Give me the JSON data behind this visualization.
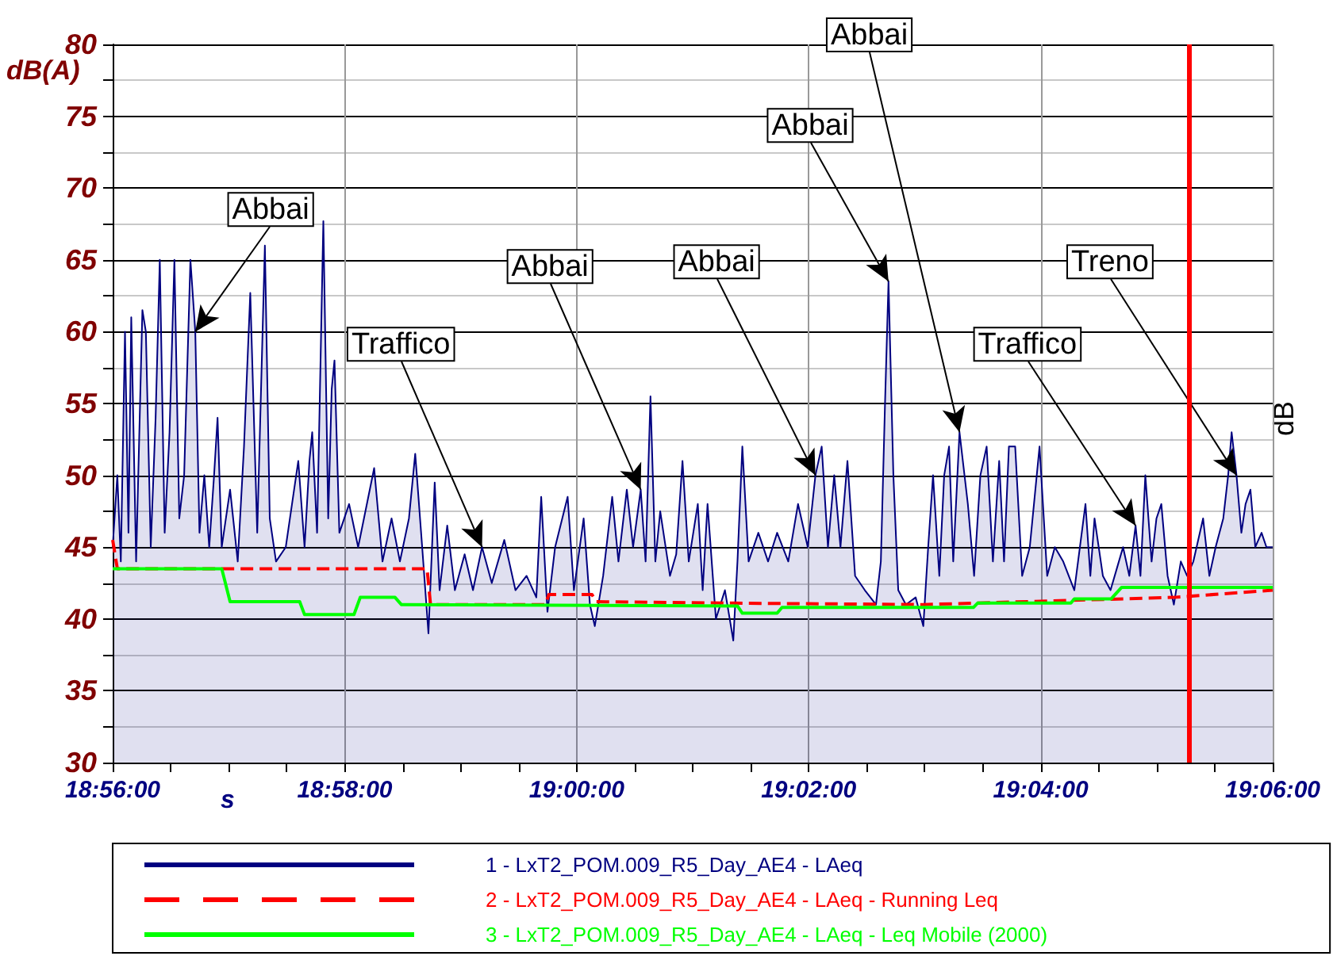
{
  "chart_data": {
    "type": "line",
    "xlabel": "s",
    "ylabel": "dB(A)",
    "xlim": [
      18.93333,
      19.1
    ],
    "ylim": [
      30,
      80
    ],
    "xticks": [
      {
        "value": 18.93333,
        "label": "18:56:00"
      },
      {
        "value": 18.94167,
        "label": null
      },
      {
        "value": 18.95,
        "label": null
      },
      {
        "value": 18.95833,
        "label": null
      },
      {
        "value": 18.96667,
        "label": "18:58:00"
      },
      {
        "value": 18.975,
        "label": null
      },
      {
        "value": 18.98333,
        "label": null
      },
      {
        "value": 18.99167,
        "label": null
      },
      {
        "value": 19,
        "label": "19:00:00"
      },
      {
        "value": 19.00833,
        "label": null
      },
      {
        "value": 19.01667,
        "label": null
      },
      {
        "value": 19.025,
        "label": null
      },
      {
        "value": 19.03333,
        "label": "19:02:00"
      },
      {
        "value": 19.04167,
        "label": null
      },
      {
        "value": 19.05,
        "label": null
      },
      {
        "value": 19.05833,
        "label": null
      },
      {
        "value": 19.06667,
        "label": "19:04:00"
      },
      {
        "value": 19.075,
        "label": null
      },
      {
        "value": 19.08333,
        "label": null
      },
      {
        "value": 19.09167,
        "label": null
      },
      {
        "value": 19.1,
        "label": "19:06:00"
      }
    ],
    "yticks": [
      30,
      {
        "value": 32.5,
        "label": null
      },
      35,
      {
        "value": 37.5,
        "label": null
      },
      40,
      {
        "value": 42.5,
        "label": null
      },
      45,
      {
        "value": 47.5,
        "label": null
      },
      50,
      {
        "value": 52.5,
        "label": null
      },
      55,
      {
        "value": 57.5,
        "label": null
      },
      60,
      {
        "value": 62.5,
        "label": null
      },
      65,
      {
        "value": 67.5,
        "label": null
      },
      70,
      {
        "value": 72.5,
        "label": null
      },
      75,
      {
        "value": 77.5,
        "label": null
      },
      80
    ],
    "grid": true,
    "legend": "bottom",
    "marker": "none",
    "series": [
      {
        "name": "1 - LxT2_POM.009_R5_Day_AE4 - LAeq",
        "type": "area",
        "color": "#000080",
        "line_style": "solid",
        "x": [
          18.93333,
          18.934,
          18.9345,
          18.9351,
          18.9356,
          18.936,
          18.9367,
          18.9376,
          18.9381,
          18.9388,
          18.9395,
          18.9401,
          18.9408,
          18.9415,
          18.9422,
          18.9429,
          18.9436,
          18.9445,
          18.9452,
          18.9458,
          18.9465,
          18.9472,
          18.9479,
          18.9484,
          18.949,
          18.9502,
          18.9513,
          18.9522,
          18.9531,
          18.9541,
          18.9552,
          18.9559,
          18.9568,
          18.9582,
          18.96,
          18.9609,
          18.9616,
          18.962,
          18.9627,
          18.9636,
          18.9643,
          18.9648,
          18.9652,
          18.9659,
          18.9673,
          18.9686,
          18.9709,
          18.9721,
          18.9734,
          18.9746,
          18.9759,
          18.9768,
          18.9778,
          18.9787,
          18.9796,
          18.9803,
          18.9814,
          18.9825,
          18.9839,
          18.9851,
          18.9864,
          18.9878,
          18.9896,
          18.9912,
          18.9928,
          18.9942,
          18.9949,
          18.9958,
          18.9969,
          18.9987,
          18.9996,
          19.001,
          19.0019,
          19.0026,
          19.0038,
          19.0051,
          19.006,
          19.0072,
          19.0081,
          19.0092,
          19.0099,
          19.0106,
          19.0113,
          19.012,
          19.0134,
          19.0143,
          19.0152,
          19.0161,
          19.0174,
          19.0181,
          19.0188,
          19.02,
          19.0213,
          19.0225,
          19.0231,
          19.0238,
          19.0247,
          19.0261,
          19.0275,
          19.0288,
          19.0304,
          19.0318,
          19.0332,
          19.0343,
          19.0352,
          19.0361,
          19.037,
          19.0379,
          19.0389,
          19.04,
          19.0414,
          19.043,
          19.0437,
          19.0443,
          19.0448,
          19.0455,
          19.0462,
          19.0473,
          19.0487,
          19.0498,
          19.0505,
          19.0512,
          19.0521,
          19.0528,
          19.0535,
          19.0541,
          19.055,
          19.0562,
          19.0571,
          19.058,
          19.0589,
          19.0598,
          19.0607,
          19.0614,
          19.0621,
          19.063,
          19.064,
          19.0651,
          19.0665,
          19.0676,
          19.0687,
          19.0699,
          19.0715,
          19.0731,
          19.0738,
          19.0744,
          19.0756,
          19.0767,
          19.0776,
          19.0785,
          19.0794,
          19.0803,
          19.081,
          19.0817,
          19.0826,
          19.0833,
          19.084,
          19.0849,
          19.0858,
          19.0868,
          19.0877,
          19.0886,
          19.09,
          19.0909,
          19.0918,
          19.0929,
          19.0936,
          19.0941,
          19.0948,
          19.0955,
          19.0961,
          19.0968,
          19.0975,
          19.0984,
          19.0991,
          19.1
        ],
        "values": [
          45,
          50,
          44,
          60,
          46,
          61,
          44,
          61.5,
          60,
          45,
          54,
          65,
          46,
          53,
          65,
          47,
          50,
          65,
          60,
          46,
          50,
          45,
          50,
          54,
          45,
          49,
          44,
          52,
          62.7,
          46,
          66,
          47,
          44,
          45,
          51,
          45,
          51,
          53,
          46,
          67.7,
          47,
          56,
          58,
          46,
          48,
          45,
          50.5,
          44,
          47,
          44,
          47,
          51.5,
          45,
          39,
          49.5,
          42,
          46.5,
          42,
          44.5,
          42,
          45,
          42.5,
          45.5,
          42,
          43,
          41.5,
          48.5,
          40.5,
          45,
          48.5,
          42,
          47,
          41,
          39.5,
          43,
          48.5,
          44,
          49,
          45,
          49,
          44,
          55.5,
          44,
          47.5,
          43,
          44.5,
          51,
          44,
          48,
          42,
          48,
          40,
          42,
          38.5,
          44,
          52,
          44,
          46,
          44,
          46,
          44,
          48,
          45,
          50,
          52,
          45,
          50,
          45,
          51,
          43,
          42,
          41,
          44,
          55,
          63.5,
          50,
          42,
          41,
          41.5,
          39.5,
          45,
          50,
          43,
          50,
          52,
          44,
          53,
          48,
          43,
          50,
          52,
          44,
          51,
          44,
          52,
          52,
          43,
          45,
          52,
          43,
          45,
          44,
          42,
          48,
          43,
          47,
          43,
          42,
          43.5,
          45,
          43,
          46.5,
          43,
          50,
          44,
          47,
          48,
          43,
          41,
          44,
          43,
          44,
          47,
          43,
          45,
          47,
          50,
          53,
          50,
          46,
          48,
          49,
          45,
          46,
          45,
          45
        ]
      },
      {
        "name": "2 - LxT2_POM.009_R5_Day_AE4 - LAeq - Running Leq",
        "color": "#ff0000",
        "line_style": "dashed",
        "x": [
          18.93333,
          18.934,
          18.9785,
          18.979,
          18.9955,
          18.996,
          19.0022,
          19.0028,
          19.0225,
          19.0498,
          19.0858,
          19.1
        ],
        "values": [
          45.5,
          43.5,
          43.5,
          41,
          41,
          41.7,
          41.7,
          41.2,
          41.1,
          41,
          41.5,
          42
        ]
      },
      {
        "name": "3 - LxT2_POM.009_R5_Day_AE4 - LAeq - Leq Mobile (2000)",
        "color": "#00ff00",
        "line_style": "solid",
        "x": [
          18.93333,
          18.949,
          18.9502,
          18.9602,
          18.9609,
          18.968,
          18.9689,
          18.9739,
          18.9748,
          19.0231,
          19.0238,
          19.0288,
          19.0295,
          19.057,
          19.0576,
          19.071,
          19.0715,
          19.0768,
          19.0783,
          19.1
        ],
        "values": [
          43.5,
          43.5,
          41.2,
          41.2,
          40.3,
          40.3,
          41.5,
          41.5,
          41,
          40.9,
          40.4,
          40.4,
          40.8,
          40.8,
          41.1,
          41.1,
          41.4,
          41.4,
          42.2,
          42.2
        ]
      }
    ],
    "ref_lines": [
      {
        "axis": "x",
        "value": 19.0879,
        "label": null,
        "color": "#ff0000"
      }
    ],
    "annotations": [
      {
        "text": "Abbai",
        "x": 18.9452,
        "y": 60
      },
      {
        "text": "Traffico",
        "x": 18.9864,
        "y": 45
      },
      {
        "text": "Abbai",
        "x": 19.0092,
        "y": 49
      },
      {
        "text": "Abbai",
        "x": 19.0343,
        "y": 50
      },
      {
        "text": "Abbai",
        "x": 19.0448,
        "y": 63.5
      },
      {
        "text": "Abbai",
        "x": 19.055,
        "y": 53
      },
      {
        "text": "Traffico",
        "x": 19.0803,
        "y": 46.5
      },
      {
        "text": "Treno",
        "x": 19.0948,
        "y": 50
      },
      "dB"
    ]
  }
}
